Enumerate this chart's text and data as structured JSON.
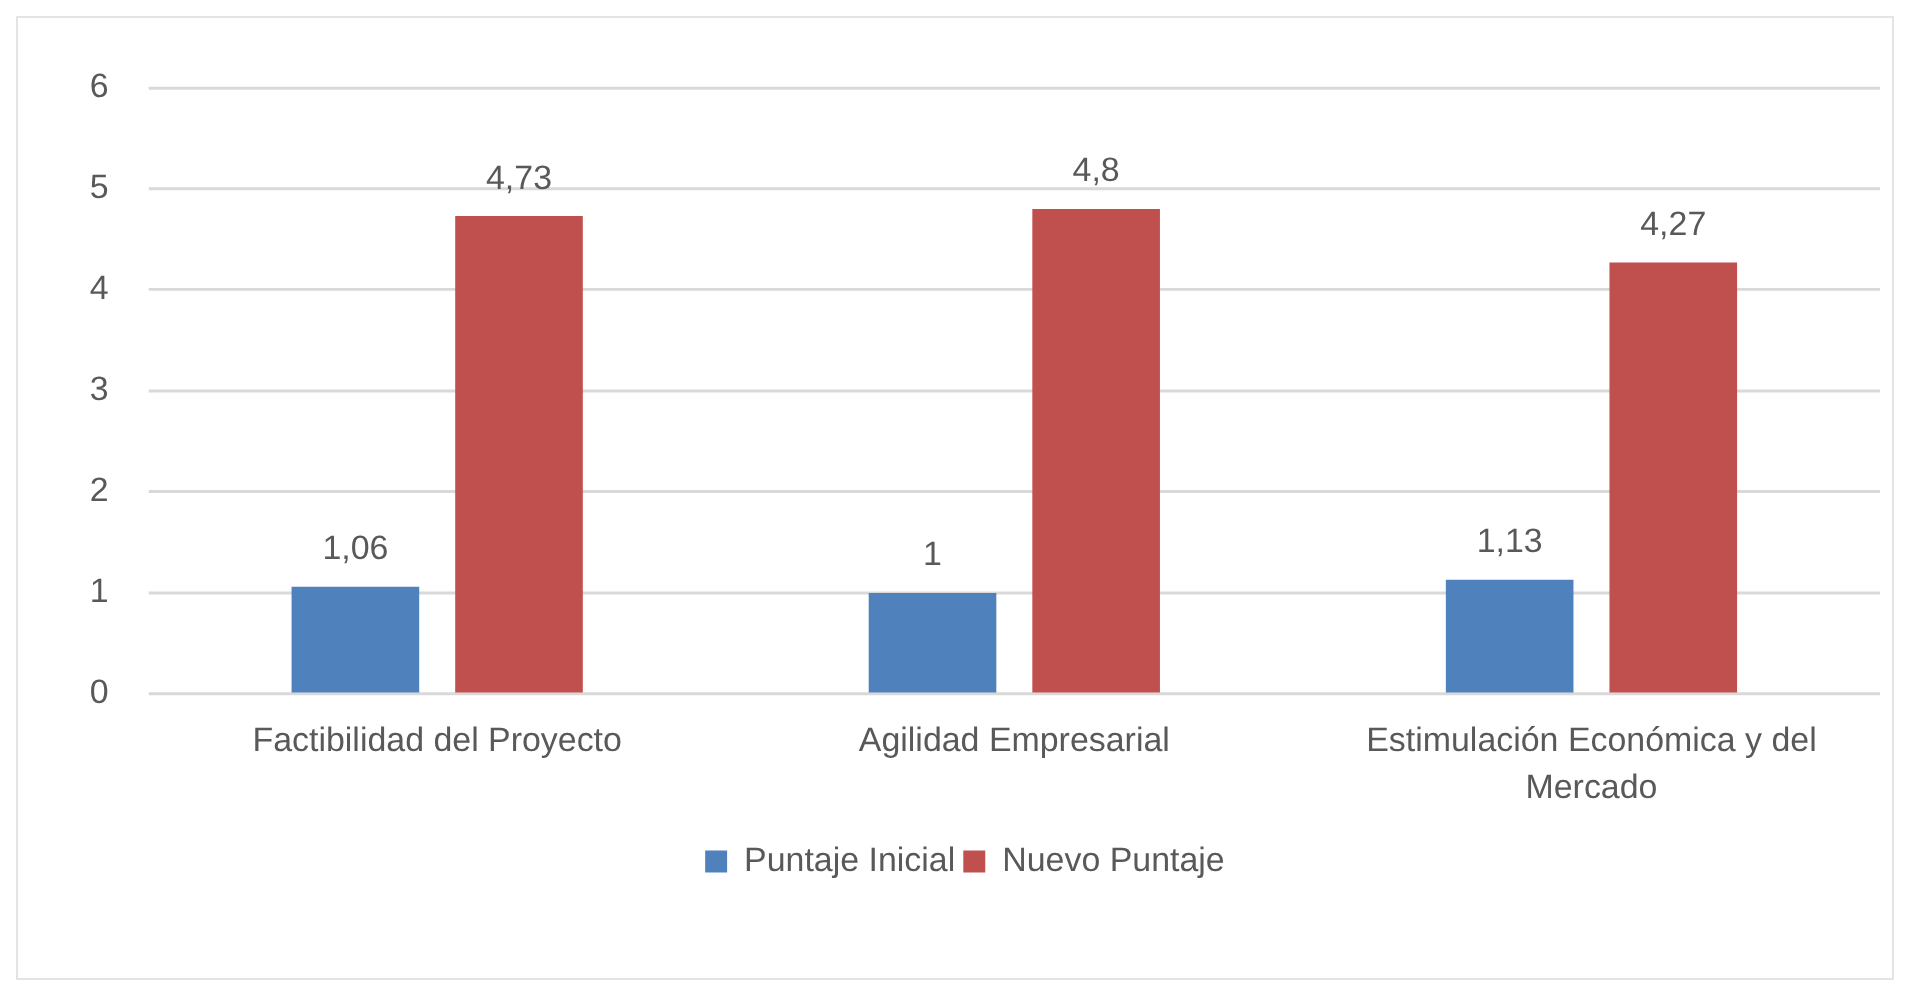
{
  "chart_data": {
    "type": "bar",
    "categories": [
      "Factibilidad del Proyecto",
      "Agilidad Empresarial",
      "Estimulación Económica y del Mercado"
    ],
    "series": [
      {
        "name": "Puntaje Inicial",
        "color": "#4f81bd",
        "values": [
          1.06,
          1,
          1.13
        ],
        "value_labels": [
          "1,06",
          "1",
          "1,13"
        ]
      },
      {
        "name": "Nuevo Puntaje",
        "color": "#c0504d",
        "values": [
          4.73,
          4.8,
          4.27
        ],
        "value_labels": [
          "4,73",
          "4,8",
          "4,27"
        ]
      }
    ],
    "ylim": [
      0,
      6
    ],
    "yticks": [
      0,
      1,
      2,
      3,
      4,
      5,
      6
    ],
    "grid": "y",
    "legend": "bottom"
  }
}
